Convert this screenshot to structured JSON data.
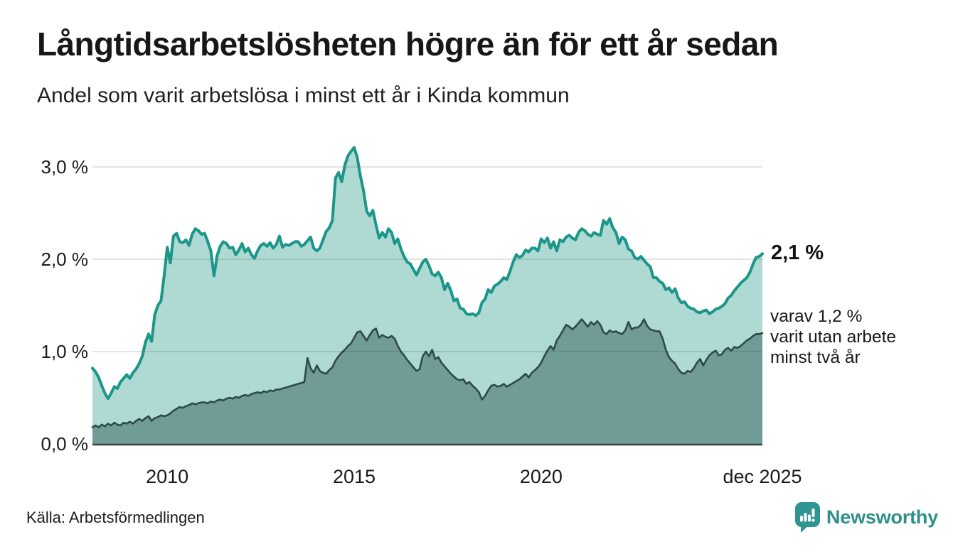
{
  "header": {
    "title": "Långtidsarbetslösheten högre än för ett år sedan",
    "subtitle": "Andel som varit arbetslösa i minst ett år i Kinda kommun"
  },
  "annotations": {
    "latest_total_label": "2,1 %",
    "breakdown_lines": [
      "varav 1,2 %",
      "varit utan arbete",
      "minst två år"
    ]
  },
  "footer": {
    "source": "Källa: Arbetsförmedlingen",
    "brand": "Newsworthy",
    "brand_icon": "bar-chart-speech-bubble-icon"
  },
  "colors": {
    "total_line": "#1b9689",
    "total_fill": "#aedad3",
    "two_plus_line": "#2e4a47",
    "two_plus_fill": "#709b96",
    "gridline": "rgba(40,40,40,0.13)",
    "axis_line": "#3b4240",
    "brand_teal": "#2e8f8b",
    "text": "#1a1a1a"
  },
  "chart_data": {
    "type": "area",
    "title": "Långtidsarbetslösheten högre än för ett år sedan",
    "subtitle": "Andel som varit arbetslösa i minst ett år i Kinda kommun",
    "xlabel": "",
    "ylabel": "",
    "ylim": [
      0,
      3.35
    ],
    "grid": "horizontal",
    "legend_position": "none",
    "x_unit": "month",
    "y_ticks": [
      {
        "label": "0,0 %",
        "value": 0
      },
      {
        "label": "1,0 %",
        "value": 1
      },
      {
        "label": "2,0 %",
        "value": 2
      },
      {
        "label": "3,0 %",
        "value": 3
      }
    ],
    "x_ticks": [
      {
        "label": "2010",
        "month_index": 24
      },
      {
        "label": "2015",
        "month_index": 84
      },
      {
        "label": "2020",
        "month_index": 144
      },
      {
        "label": "dec 2025",
        "month_index": 215
      }
    ],
    "latest_values": {
      "total": 2.1,
      "two_plus_years": 1.2
    },
    "series": [
      {
        "name": "Andel arbetslösa minst ett år",
        "values": [
          0.82,
          0.78,
          0.72,
          0.63,
          0.55,
          0.49,
          0.55,
          0.62,
          0.6,
          0.67,
          0.71,
          0.75,
          0.71,
          0.77,
          0.81,
          0.87,
          0.95,
          1.1,
          1.19,
          1.11,
          1.4,
          1.5,
          1.55,
          1.82,
          2.13,
          1.96,
          2.25,
          2.28,
          2.19,
          2.18,
          2.21,
          2.15,
          2.27,
          2.33,
          2.31,
          2.27,
          2.28,
          2.19,
          2.09,
          1.82,
          2.04,
          2.14,
          2.19,
          2.17,
          2.12,
          2.13,
          2.05,
          2.1,
          2.17,
          2.08,
          2.12,
          2.05,
          2.01,
          2.09,
          2.15,
          2.17,
          2.14,
          2.18,
          2.12,
          2.16,
          2.25,
          2.13,
          2.16,
          2.15,
          2.17,
          2.19,
          2.19,
          2.14,
          2.16,
          2.2,
          2.24,
          2.12,
          2.09,
          2.12,
          2.21,
          2.3,
          2.34,
          2.42,
          2.88,
          2.94,
          2.84,
          3.02,
          3.12,
          3.17,
          3.21,
          3.1,
          2.9,
          2.74,
          2.52,
          2.47,
          2.53,
          2.37,
          2.23,
          2.29,
          2.24,
          2.33,
          2.29,
          2.17,
          2.22,
          2.11,
          2.03,
          1.97,
          1.95,
          1.89,
          1.83,
          1.9,
          1.97,
          2.0,
          1.93,
          1.84,
          1.82,
          1.86,
          1.8,
          1.67,
          1.74,
          1.66,
          1.55,
          1.57,
          1.47,
          1.46,
          1.41,
          1.4,
          1.41,
          1.39,
          1.42,
          1.53,
          1.57,
          1.67,
          1.64,
          1.71,
          1.73,
          1.76,
          1.8,
          1.78,
          1.87,
          1.97,
          2.05,
          2.02,
          2.04,
          2.1,
          2.08,
          2.12,
          2.12,
          2.09,
          2.22,
          2.18,
          2.23,
          2.12,
          2.19,
          2.09,
          2.21,
          2.19,
          2.24,
          2.26,
          2.23,
          2.21,
          2.29,
          2.33,
          2.31,
          2.27,
          2.25,
          2.29,
          2.27,
          2.26,
          2.42,
          2.38,
          2.44,
          2.34,
          2.29,
          2.17,
          2.24,
          2.21,
          2.11,
          2.09,
          2.02,
          2.0,
          2.03,
          1.99,
          1.95,
          1.92,
          1.8,
          1.8,
          1.76,
          1.74,
          1.67,
          1.69,
          1.64,
          1.68,
          1.58,
          1.53,
          1.54,
          1.49,
          1.47,
          1.46,
          1.43,
          1.42,
          1.44,
          1.45,
          1.41,
          1.43,
          1.46,
          1.47,
          1.49,
          1.52,
          1.58,
          1.61,
          1.66,
          1.7,
          1.74,
          1.77,
          1.8,
          1.86,
          1.95,
          2.02,
          2.03,
          2.06
        ]
      },
      {
        "name": "varav arbetslösa minst två år",
        "values": [
          0.18,
          0.2,
          0.18,
          0.21,
          0.19,
          0.22,
          0.2,
          0.23,
          0.21,
          0.2,
          0.23,
          0.22,
          0.24,
          0.22,
          0.25,
          0.27,
          0.25,
          0.28,
          0.3,
          0.25,
          0.28,
          0.29,
          0.31,
          0.3,
          0.31,
          0.33,
          0.36,
          0.38,
          0.4,
          0.39,
          0.41,
          0.42,
          0.44,
          0.43,
          0.44,
          0.45,
          0.45,
          0.44,
          0.46,
          0.45,
          0.47,
          0.48,
          0.47,
          0.49,
          0.5,
          0.49,
          0.51,
          0.5,
          0.52,
          0.53,
          0.52,
          0.54,
          0.55,
          0.56,
          0.55,
          0.57,
          0.56,
          0.58,
          0.57,
          0.59,
          0.59,
          0.6,
          0.61,
          0.62,
          0.63,
          0.64,
          0.65,
          0.66,
          0.67,
          0.93,
          0.82,
          0.77,
          0.85,
          0.79,
          0.77,
          0.76,
          0.8,
          0.83,
          0.9,
          0.95,
          0.99,
          1.02,
          1.06,
          1.09,
          1.15,
          1.21,
          1.22,
          1.17,
          1.12,
          1.18,
          1.23,
          1.25,
          1.15,
          1.18,
          1.16,
          1.15,
          1.17,
          1.14,
          1.06,
          1.0,
          0.96,
          0.91,
          0.87,
          0.83,
          0.79,
          0.81,
          0.95,
          1.0,
          0.95,
          1.02,
          0.92,
          0.94,
          0.88,
          0.84,
          0.8,
          0.76,
          0.73,
          0.7,
          0.69,
          0.7,
          0.65,
          0.67,
          0.63,
          0.6,
          0.56,
          0.48,
          0.52,
          0.58,
          0.63,
          0.64,
          0.62,
          0.63,
          0.65,
          0.62,
          0.64,
          0.66,
          0.68,
          0.7,
          0.73,
          0.76,
          0.72,
          0.77,
          0.8,
          0.83,
          0.88,
          0.95,
          1.01,
          1.06,
          1.02,
          1.12,
          1.17,
          1.23,
          1.29,
          1.27,
          1.24,
          1.27,
          1.31,
          1.35,
          1.31,
          1.27,
          1.32,
          1.29,
          1.33,
          1.29,
          1.21,
          1.19,
          1.23,
          1.21,
          1.22,
          1.2,
          1.19,
          1.23,
          1.32,
          1.24,
          1.26,
          1.26,
          1.29,
          1.35,
          1.28,
          1.24,
          1.23,
          1.22,
          1.22,
          1.14,
          1.02,
          0.94,
          0.9,
          0.87,
          0.81,
          0.77,
          0.76,
          0.79,
          0.78,
          0.82,
          0.88,
          0.92,
          0.85,
          0.91,
          0.96,
          0.99,
          1.01,
          0.96,
          0.97,
          1.02,
          1.04,
          1.01,
          1.05,
          1.04,
          1.06,
          1.09,
          1.12,
          1.14,
          1.17,
          1.19,
          1.19,
          1.2
        ]
      }
    ]
  }
}
